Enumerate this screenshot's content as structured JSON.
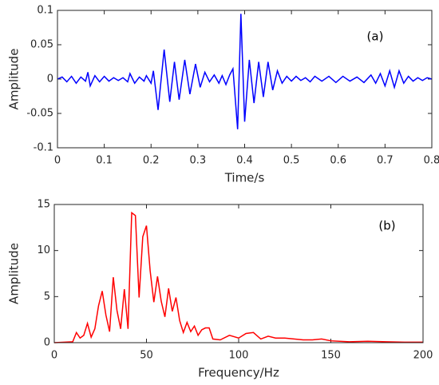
{
  "chart_data": [
    {
      "type": "line",
      "xlabel": "Time/s",
      "ylabel": "Amplitude",
      "annotation": "(a)",
      "color": "#0000ff",
      "xlim": [
        0,
        0.8
      ],
      "ylim": [
        -0.1,
        0.1
      ],
      "xticks": [
        0,
        0.1,
        0.2,
        0.3,
        0.4,
        0.5,
        0.6,
        0.7,
        0.8
      ],
      "yticks": [
        -0.1,
        -0.05,
        0,
        0.05,
        0.1
      ],
      "x": [
        0,
        0.01,
        0.02,
        0.03,
        0.04,
        0.05,
        0.06,
        0.065,
        0.07,
        0.08,
        0.09,
        0.1,
        0.11,
        0.12,
        0.13,
        0.14,
        0.15,
        0.155,
        0.165,
        0.175,
        0.185,
        0.19,
        0.2,
        0.205,
        0.215,
        0.228,
        0.24,
        0.25,
        0.26,
        0.272,
        0.283,
        0.295,
        0.305,
        0.315,
        0.325,
        0.335,
        0.345,
        0.352,
        0.36,
        0.368,
        0.375,
        0.385,
        0.392,
        0.4,
        0.41,
        0.42,
        0.43,
        0.44,
        0.45,
        0.46,
        0.47,
        0.48,
        0.49,
        0.5,
        0.51,
        0.52,
        0.53,
        0.54,
        0.55,
        0.565,
        0.58,
        0.595,
        0.61,
        0.625,
        0.64,
        0.655,
        0.67,
        0.68,
        0.69,
        0.7,
        0.71,
        0.72,
        0.73,
        0.74,
        0.75,
        0.76,
        0.77,
        0.78,
        0.79,
        0.8
      ],
      "values": [
        0,
        0.003,
        -0.004,
        0.004,
        -0.006,
        0.003,
        -0.003,
        0.01,
        -0.01,
        0.005,
        -0.004,
        0.004,
        -0.003,
        0.002,
        -0.002,
        0.002,
        -0.004,
        0.008,
        -0.006,
        0.003,
        -0.003,
        0.005,
        -0.006,
        0.012,
        -0.045,
        0.043,
        -0.033,
        0.025,
        -0.03,
        0.028,
        -0.022,
        0.022,
        -0.012,
        0.01,
        -0.004,
        0.006,
        -0.006,
        0.005,
        -0.008,
        0.006,
        0.015,
        -0.073,
        0.095,
        -0.062,
        0.028,
        -0.035,
        0.025,
        -0.026,
        0.025,
        -0.016,
        0.012,
        -0.006,
        0.004,
        -0.003,
        0.004,
        -0.002,
        0.002,
        -0.004,
        0.004,
        -0.003,
        0.004,
        -0.005,
        0.004,
        -0.003,
        0.003,
        -0.005,
        0.006,
        -0.006,
        0.008,
        -0.01,
        0.012,
        -0.012,
        0.012,
        -0.006,
        0.004,
        -0.003,
        0.002,
        -0.002,
        0.002,
        0
      ]
    },
    {
      "type": "line",
      "xlabel": "Frequency/Hz",
      "ylabel": "Amplitude",
      "annotation": "(b)",
      "color": "#ff0000",
      "xlim": [
        0,
        200
      ],
      "ylim": [
        0,
        15
      ],
      "xticks": [
        0,
        50,
        100,
        150,
        200
      ],
      "yticks": [
        0,
        5,
        10,
        15
      ],
      "x": [
        0,
        10,
        12,
        14,
        16,
        18,
        20,
        22,
        24,
        26,
        28,
        30,
        32,
        34,
        36,
        38,
        40,
        42,
        44,
        46,
        48,
        50,
        52,
        54,
        56,
        58,
        60,
        62,
        64,
        66,
        68,
        70,
        72,
        74,
        76,
        78,
        80,
        82,
        84,
        86,
        90,
        95,
        100,
        104,
        108,
        112,
        116,
        120,
        125,
        130,
        135,
        140,
        145,
        150,
        160,
        170,
        180,
        190,
        200
      ],
      "values": [
        0,
        0.1,
        1.1,
        0.5,
        0.8,
        2.1,
        0.6,
        1.5,
        4,
        5.6,
        3,
        1.2,
        7.1,
        3.5,
        1.5,
        5.8,
        1.5,
        14.1,
        13.8,
        4.9,
        11.5,
        12.7,
        7.8,
        4.4,
        7.2,
        4.5,
        2.8,
        5.9,
        3.4,
        4.9,
        2.4,
        1.1,
        2.2,
        1.2,
        1.8,
        0.8,
        1.4,
        1.6,
        1.6,
        0.4,
        0.3,
        0.8,
        0.5,
        1,
        1.1,
        0.4,
        0.7,
        0.5,
        0.5,
        0.4,
        0.3,
        0.3,
        0.4,
        0.2,
        0.1,
        0.15,
        0.1,
        0.05,
        0.05
      ]
    }
  ]
}
